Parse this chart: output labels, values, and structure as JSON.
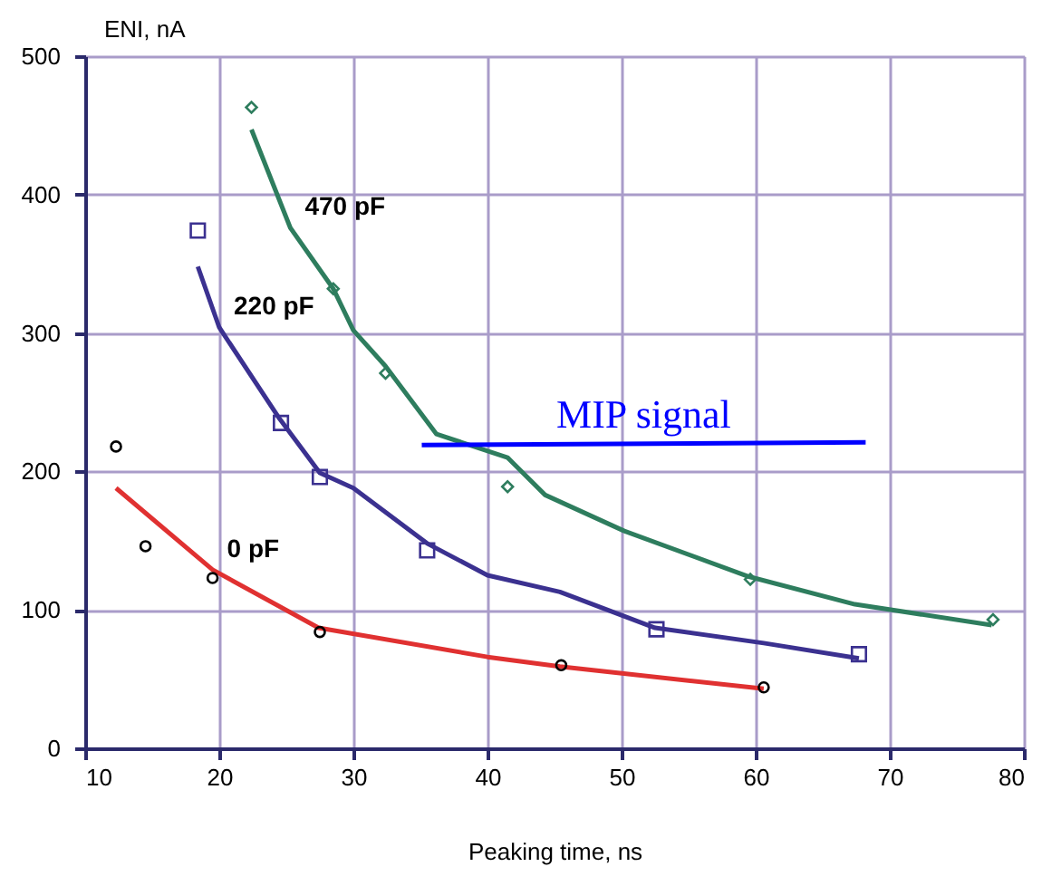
{
  "chart_data": {
    "type": "scatter",
    "xlabel": "Peaking time, ns",
    "ylabel": "ENI, nA",
    "xlim": [
      10,
      80
    ],
    "xticks": [
      10,
      20,
      30,
      40,
      50,
      60,
      70,
      80
    ],
    "ylim": [
      0,
      500
    ],
    "yticks": [
      0,
      100,
      200,
      300,
      400,
      500
    ],
    "grid": true,
    "series": [
      {
        "type": "line",
        "name": "0 pF",
        "line_style": "solid",
        "color": "#e03131",
        "x": [
          12.3,
          19.5,
          27.4,
          40,
          45.4,
          60.6
        ],
        "values": [
          188,
          129,
          87,
          66,
          59,
          43
        ]
      },
      {
        "type": "line",
        "name": "220 pF",
        "line_style": "solid",
        "color": "#3b3190",
        "x": [
          18.4,
          20,
          24.5,
          27.5,
          30,
          35.5,
          40,
          45.4,
          52.5,
          60.6,
          67.7
        ],
        "values": [
          348,
          304,
          238,
          199,
          188,
          148,
          125,
          113,
          87,
          76,
          65
        ]
      },
      {
        "type": "line",
        "name": "470 pF",
        "line_style": "solid",
        "color": "#2e7d5e",
        "x": [
          22.4,
          25.3,
          28.5,
          30,
          32.4,
          36.2,
          41.5,
          44.3,
          50.2,
          59.5,
          67.4,
          77.6
        ],
        "values": [
          447,
          376,
          332,
          302,
          276,
          227,
          210,
          183,
          157,
          124,
          104,
          89
        ]
      },
      {
        "marker": "circle",
        "color": "#000000",
        "x": [
          12.3,
          14.5,
          19.5,
          27.5,
          45.5,
          60.6
        ],
        "values": [
          218,
          146,
          123,
          84,
          60,
          44
        ]
      },
      {
        "marker": "square",
        "color": "#3b3190",
        "x": [
          18.4,
          24.6,
          27.5,
          35.5,
          52.6,
          67.7
        ],
        "values": [
          374,
          235,
          196,
          143,
          86,
          68
        ]
      },
      {
        "marker": "diamond",
        "color": "#2e7d5e",
        "x": [
          22.4,
          28.5,
          32.4,
          41.5,
          59.6,
          77.7
        ],
        "values": [
          463,
          332,
          271,
          189,
          122,
          93
        ]
      },
      {
        "type": "line",
        "name": "MIP signal",
        "line_style": "solid",
        "color": "#0000ff",
        "x": [
          35.1,
          68.2
        ],
        "values": [
          219,
          221
        ]
      }
    ]
  }
}
